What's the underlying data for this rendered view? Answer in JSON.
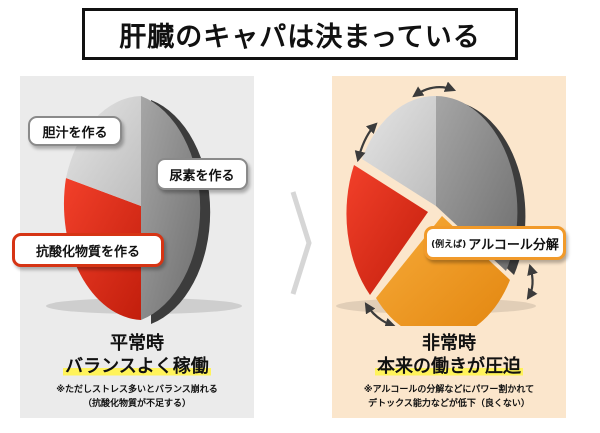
{
  "title": "肝臓のキャパは決まっている",
  "colors": {
    "gray": "#8a8a8a",
    "red": "#e3331a",
    "orange": "#f39a1b",
    "highlight": "#fff35a"
  },
  "left_panel": {
    "labels": {
      "bile": "胆汁を作る",
      "urea": "尿素を作る",
      "antioxidant": "抗酸化物質を作る"
    },
    "state_title": "平常時",
    "state_sub": "バランスよく稼働",
    "note_line1": "※ただしストレス多いとバランス崩れる",
    "note_line2": "（抗酸化物質が不足する）"
  },
  "right_panel": {
    "labels": {
      "example": "(例えば)",
      "alcohol": "アルコール分解"
    },
    "state_title": "非常時",
    "state_sub": "本来の働きが圧迫",
    "note_line1": "※アルコールの分解などにパワー割かれて",
    "note_line2": "デトックス能力などが低下（良くない）"
  }
}
